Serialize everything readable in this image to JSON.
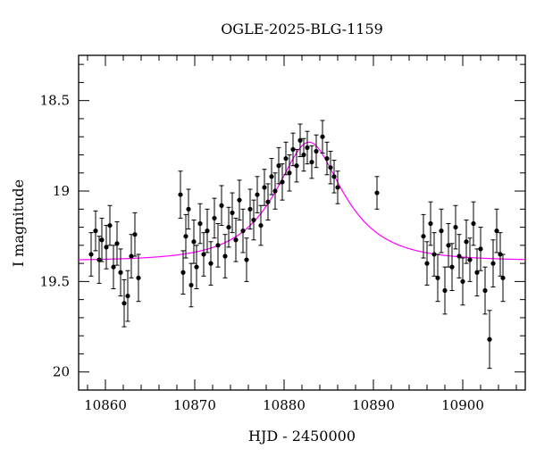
{
  "chart_data": {
    "type": "scatter",
    "title": "OGLE-2025-BLG-1159",
    "xlabel": "HJD - 2450000",
    "ylabel": "I magnitude",
    "xlim": [
      10857,
      10907
    ],
    "ylim": [
      20.1,
      18.25
    ],
    "y_inverted": true,
    "grid": false,
    "x_ticks": [
      10860,
      10870,
      10880,
      10890,
      10900
    ],
    "y_ticks": [
      18.5,
      19,
      19.5,
      20
    ],
    "y_tick_labels": [
      "18.5",
      "19",
      "19.5",
      "20"
    ],
    "colors": {
      "points": "#000000",
      "model": "#ff00ff",
      "frame": "#000000"
    },
    "model_params": {
      "t0": 10882.8,
      "u0": 0.5,
      "tE": 6.5,
      "baseline": 19.385,
      "peak": 18.73
    },
    "observations": [
      {
        "x": 10858.4,
        "y": 19.35,
        "err": 0.12
      },
      {
        "x": 10858.9,
        "y": 19.22,
        "err": 0.11
      },
      {
        "x": 10859.3,
        "y": 19.38,
        "err": 0.13
      },
      {
        "x": 10859.6,
        "y": 19.27,
        "err": 0.12
      },
      {
        "x": 10860.1,
        "y": 19.31,
        "err": 0.12
      },
      {
        "x": 10860.5,
        "y": 19.19,
        "err": 0.11
      },
      {
        "x": 10860.9,
        "y": 19.42,
        "err": 0.12
      },
      {
        "x": 10861.3,
        "y": 19.29,
        "err": 0.12
      },
      {
        "x": 10861.7,
        "y": 19.45,
        "err": 0.13
      },
      {
        "x": 10862.1,
        "y": 19.62,
        "err": 0.13
      },
      {
        "x": 10862.5,
        "y": 19.58,
        "err": 0.14
      },
      {
        "x": 10862.9,
        "y": 19.36,
        "err": 0.12
      },
      {
        "x": 10863.3,
        "y": 19.24,
        "err": 0.12
      },
      {
        "x": 10863.7,
        "y": 19.48,
        "err": 0.13
      },
      {
        "x": 10868.4,
        "y": 19.02,
        "err": 0.13
      },
      {
        "x": 10868.7,
        "y": 19.45,
        "err": 0.12
      },
      {
        "x": 10869.0,
        "y": 19.25,
        "err": 0.12
      },
      {
        "x": 10869.3,
        "y": 19.1,
        "err": 0.11
      },
      {
        "x": 10869.6,
        "y": 19.52,
        "err": 0.12
      },
      {
        "x": 10869.9,
        "y": 19.28,
        "err": 0.12
      },
      {
        "x": 10870.2,
        "y": 19.42,
        "err": 0.12
      },
      {
        "x": 10870.6,
        "y": 19.18,
        "err": 0.11
      },
      {
        "x": 10871.0,
        "y": 19.35,
        "err": 0.12
      },
      {
        "x": 10871.4,
        "y": 19.22,
        "err": 0.12
      },
      {
        "x": 10871.8,
        "y": 19.4,
        "err": 0.12
      },
      {
        "x": 10872.2,
        "y": 19.15,
        "err": 0.11
      },
      {
        "x": 10872.6,
        "y": 19.3,
        "err": 0.12
      },
      {
        "x": 10873.0,
        "y": 19.08,
        "err": 0.11
      },
      {
        "x": 10873.4,
        "y": 19.36,
        "err": 0.12
      },
      {
        "x": 10873.8,
        "y": 19.2,
        "err": 0.11
      },
      {
        "x": 10874.2,
        "y": 19.12,
        "err": 0.11
      },
      {
        "x": 10874.6,
        "y": 19.27,
        "err": 0.12
      },
      {
        "x": 10875.0,
        "y": 19.05,
        "err": 0.11
      },
      {
        "x": 10875.4,
        "y": 19.22,
        "err": 0.12
      },
      {
        "x": 10875.8,
        "y": 19.38,
        "err": 0.12
      },
      {
        "x": 10876.2,
        "y": 19.1,
        "err": 0.11
      },
      {
        "x": 10876.6,
        "y": 19.16,
        "err": 0.11
      },
      {
        "x": 10877.0,
        "y": 19.02,
        "err": 0.1
      },
      {
        "x": 10877.4,
        "y": 19.19,
        "err": 0.11
      },
      {
        "x": 10877.8,
        "y": 18.98,
        "err": 0.1
      },
      {
        "x": 10878.2,
        "y": 19.06,
        "err": 0.1
      },
      {
        "x": 10878.6,
        "y": 18.92,
        "err": 0.1
      },
      {
        "x": 10879.0,
        "y": 19.0,
        "err": 0.1
      },
      {
        "x": 10879.4,
        "y": 18.86,
        "err": 0.1
      },
      {
        "x": 10879.8,
        "y": 18.95,
        "err": 0.1
      },
      {
        "x": 10880.2,
        "y": 18.82,
        "err": 0.09
      },
      {
        "x": 10880.6,
        "y": 18.9,
        "err": 0.1
      },
      {
        "x": 10881.0,
        "y": 18.77,
        "err": 0.09
      },
      {
        "x": 10881.4,
        "y": 18.86,
        "err": 0.09
      },
      {
        "x": 10881.8,
        "y": 18.72,
        "err": 0.09
      },
      {
        "x": 10882.2,
        "y": 18.8,
        "err": 0.09
      },
      {
        "x": 10882.6,
        "y": 18.76,
        "err": 0.09
      },
      {
        "x": 10883.1,
        "y": 18.84,
        "err": 0.09
      },
      {
        "x": 10883.6,
        "y": 18.78,
        "err": 0.09
      },
      {
        "x": 10884.3,
        "y": 18.7,
        "err": 0.09
      },
      {
        "x": 10884.8,
        "y": 18.82,
        "err": 0.09
      },
      {
        "x": 10885.2,
        "y": 18.87,
        "err": 0.09
      },
      {
        "x": 10885.6,
        "y": 18.92,
        "err": 0.09
      },
      {
        "x": 10886.0,
        "y": 18.98,
        "err": 0.09
      },
      {
        "x": 10890.4,
        "y": 19.01,
        "err": 0.09
      },
      {
        "x": 10895.6,
        "y": 19.25,
        "err": 0.12
      },
      {
        "x": 10896.0,
        "y": 19.4,
        "err": 0.12
      },
      {
        "x": 10896.4,
        "y": 19.18,
        "err": 0.12
      },
      {
        "x": 10896.8,
        "y": 19.35,
        "err": 0.12
      },
      {
        "x": 10897.2,
        "y": 19.48,
        "err": 0.13
      },
      {
        "x": 10897.6,
        "y": 19.22,
        "err": 0.12
      },
      {
        "x": 10898.0,
        "y": 19.55,
        "err": 0.13
      },
      {
        "x": 10898.4,
        "y": 19.3,
        "err": 0.12
      },
      {
        "x": 10898.8,
        "y": 19.42,
        "err": 0.13
      },
      {
        "x": 10899.2,
        "y": 19.2,
        "err": 0.12
      },
      {
        "x": 10899.6,
        "y": 19.36,
        "err": 0.12
      },
      {
        "x": 10900.0,
        "y": 19.5,
        "err": 0.13
      },
      {
        "x": 10900.4,
        "y": 19.28,
        "err": 0.12
      },
      {
        "x": 10900.8,
        "y": 19.38,
        "err": 0.12
      },
      {
        "x": 10901.2,
        "y": 19.18,
        "err": 0.12
      },
      {
        "x": 10901.6,
        "y": 19.45,
        "err": 0.13
      },
      {
        "x": 10902.0,
        "y": 19.32,
        "err": 0.12
      },
      {
        "x": 10902.5,
        "y": 19.55,
        "err": 0.13
      },
      {
        "x": 10903.0,
        "y": 19.82,
        "err": 0.16
      },
      {
        "x": 10903.4,
        "y": 19.4,
        "err": 0.13
      },
      {
        "x": 10903.8,
        "y": 19.22,
        "err": 0.12
      },
      {
        "x": 10904.2,
        "y": 19.35,
        "err": 0.12
      },
      {
        "x": 10904.5,
        "y": 19.48,
        "err": 0.13
      }
    ]
  }
}
